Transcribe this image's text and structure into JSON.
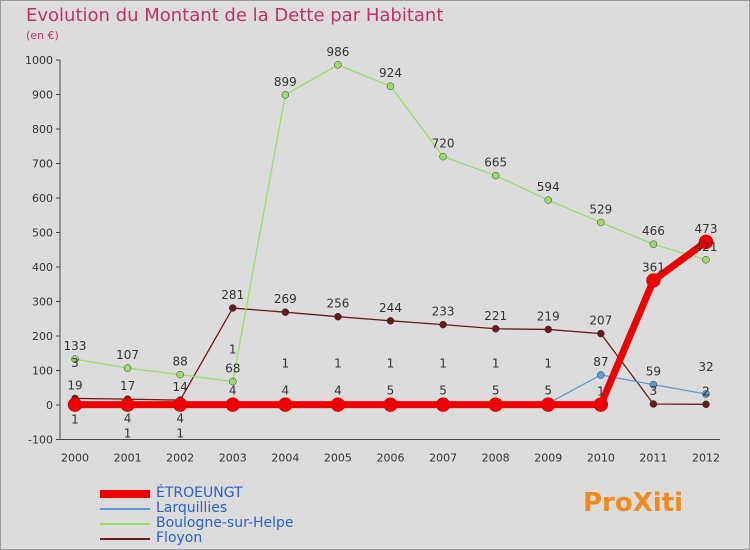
{
  "title": "Evolution du Montant de la Dette par Habitant",
  "unit": "(en €)",
  "logo": "ProXiti",
  "chart_data": {
    "type": "line",
    "title": "Evolution du Montant de la Dette par Habitant",
    "ylabel": "(en €)",
    "ylim": [
      -100,
      1000
    ],
    "yticks": [
      -100,
      0,
      100,
      200,
      300,
      400,
      500,
      600,
      700,
      800,
      900,
      1000
    ],
    "x": [
      2000,
      2001,
      2002,
      2003,
      2004,
      2005,
      2006,
      2007,
      2008,
      2009,
      2010,
      2011,
      2012
    ],
    "grid": false,
    "legend": "bottom-left",
    "series": [
      {
        "name": "ÉTROEUNGT",
        "color": "#ee0000",
        "values": [
          1,
          1,
          1,
          1,
          1,
          1,
          1,
          1,
          1,
          1,
          1,
          361,
          473
        ]
      },
      {
        "name": "Larquillies",
        "color": "#5b9bd5",
        "values": [
          3,
          4,
          4,
          4,
          4,
          4,
          5,
          5,
          5,
          5,
          87,
          59,
          32
        ]
      },
      {
        "name": "Boulogne-sur-Helpe",
        "color": "#99dd66",
        "values": [
          133,
          107,
          88,
          68,
          899,
          986,
          924,
          720,
          665,
          594,
          529,
          466,
          421
        ]
      },
      {
        "name": "Floyon",
        "color": "#6b1a1a",
        "values": [
          19,
          17,
          14,
          281,
          269,
          256,
          244,
          233,
          221,
          219,
          207,
          3,
          2
        ]
      }
    ]
  }
}
